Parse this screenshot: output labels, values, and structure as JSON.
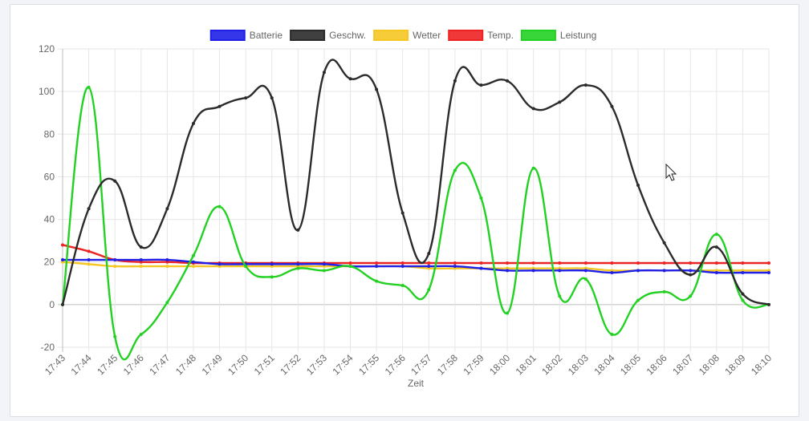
{
  "chart_data": {
    "type": "line",
    "xlabel": "Zeit",
    "ylabel": "",
    "ylim": [
      -20,
      120
    ],
    "yticks": [
      -20,
      0,
      20,
      40,
      60,
      80,
      100,
      120
    ],
    "grid": true,
    "legend_position": "top",
    "categories": [
      "17:43",
      "17:44",
      "17:45",
      "17:46",
      "17:47",
      "17:48",
      "17:49",
      "17:50",
      "17:51",
      "17:52",
      "17:53",
      "17:54",
      "17:55",
      "17:56",
      "17:57",
      "17:58",
      "17:59",
      "18:00",
      "18:01",
      "18:02",
      "18:03",
      "18:04",
      "18:05",
      "18:06",
      "18:07",
      "18:08",
      "18:09",
      "18:10"
    ],
    "series": [
      {
        "name": "Batterie",
        "color": "#1f1fe8",
        "values": [
          21,
          21,
          21,
          21,
          21,
          20,
          19,
          19,
          19,
          19,
          19,
          18,
          18,
          18,
          18,
          18,
          17,
          16,
          16,
          16,
          16,
          15,
          16,
          16,
          16,
          15,
          15,
          15
        ]
      },
      {
        "name": "Geschw.",
        "color": "#2b2b2b",
        "values": [
          0,
          45,
          58,
          27,
          45,
          85,
          93,
          97,
          97,
          35,
          109,
          106,
          101,
          43,
          24,
          105,
          103,
          105,
          92,
          95,
          103,
          93,
          56,
          29,
          14,
          27,
          5,
          0
        ]
      },
      {
        "name": "Wetter",
        "color": "#f5c724",
        "values": [
          20,
          19,
          18,
          18,
          18,
          18,
          18,
          18,
          18,
          18,
          18,
          18,
          18,
          18,
          17,
          17,
          17,
          17,
          17,
          17,
          17,
          16,
          16,
          16,
          16,
          16,
          16,
          16
        ]
      },
      {
        "name": "Temp.",
        "color": "#ee2222",
        "values": [
          28,
          25,
          21,
          20,
          20,
          19.5,
          19.5,
          19.5,
          19.5,
          19.5,
          19.5,
          19.5,
          19.5,
          19.5,
          19.5,
          19.5,
          19.5,
          19.5,
          19.5,
          19.5,
          19.5,
          19.5,
          19.5,
          19.5,
          19.5,
          19.5,
          19.5,
          19.5
        ]
      },
      {
        "name": "Leistung",
        "color": "#22d122",
        "values": [
          0,
          102,
          -15,
          -14,
          1,
          23,
          46,
          18,
          13,
          17,
          16,
          18,
          11,
          9,
          7,
          63,
          50,
          -4,
          64,
          4,
          12,
          -14,
          2,
          6,
          4,
          33,
          2,
          0
        ]
      }
    ]
  }
}
